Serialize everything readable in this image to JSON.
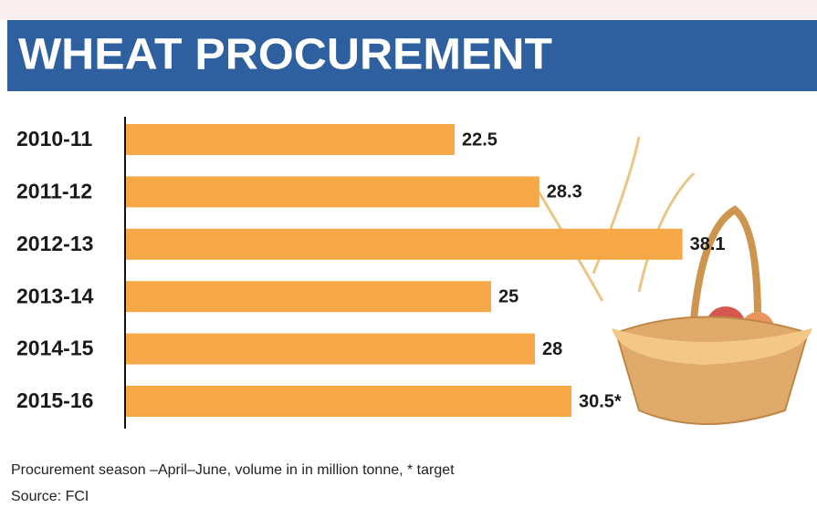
{
  "chart_data": {
    "type": "bar",
    "orientation": "horizontal",
    "title": "WHEAT PROCUREMENT",
    "categories": [
      "2010-11",
      "2011-12",
      "2012-13",
      "2013-14",
      "2014-15",
      "2015-16"
    ],
    "values": [
      22.5,
      28.3,
      38.1,
      25,
      28,
      30.5
    ],
    "value_labels": [
      "22.5",
      "28.3",
      "38.1",
      "25",
      "28",
      "30.5*"
    ],
    "color": "#f6a846",
    "xlim": [
      0,
      40
    ],
    "notes": [
      "Procurement season –April–June, volume in in million tonne, * target",
      "Source: FCI"
    ]
  }
}
